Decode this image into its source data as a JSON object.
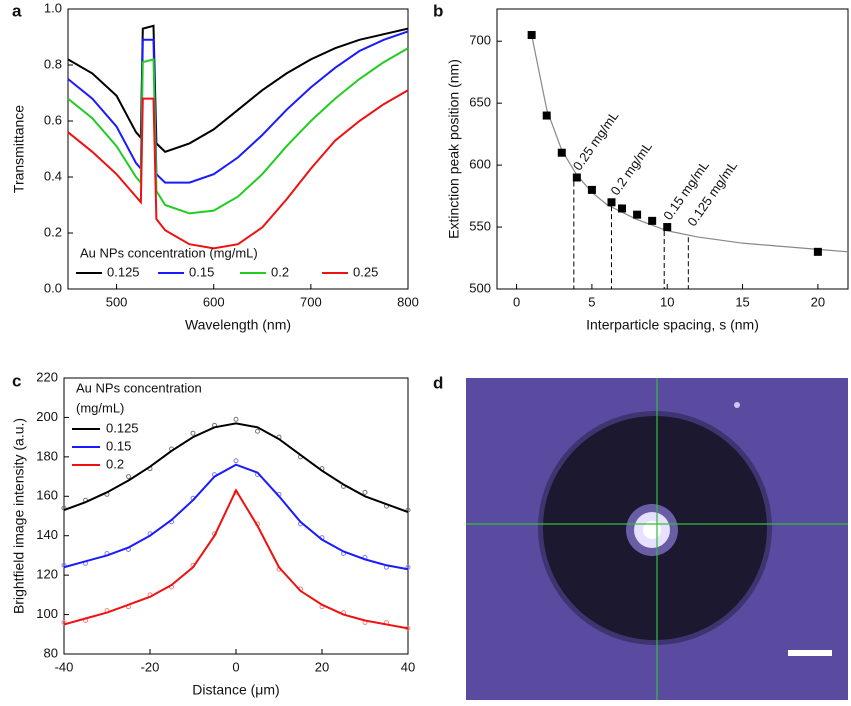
{
  "chart_data": [
    {
      "type": "line",
      "panel_label": "a",
      "x_label": "Wavelength (nm)",
      "y_label": "Transmittance",
      "xlim": [
        450,
        800
      ],
      "ylim": [
        0,
        1.0
      ],
      "xticks": [
        500,
        600,
        700,
        800
      ],
      "yticks": [
        {
          "value": 0,
          "label": "0.0"
        },
        0.2,
        0.4,
        0.6,
        0.8,
        {
          "value": 1.0,
          "label": "1.0"
        }
      ],
      "legend_title": [
        "Au NPs concentration (mg/mL)"
      ],
      "legend": "lower left",
      "x": [
        450,
        475,
        500,
        520,
        525,
        527,
        538,
        541,
        550,
        575,
        600,
        625,
        650,
        675,
        700,
        725,
        750,
        775,
        800
      ],
      "series": [
        {
          "name": "0.125",
          "color": "#000000",
          "values": [
            0.82,
            0.77,
            0.69,
            0.56,
            0.54,
            0.93,
            0.94,
            0.52,
            0.49,
            0.52,
            0.57,
            0.64,
            0.71,
            0.77,
            0.82,
            0.86,
            0.89,
            0.91,
            0.93
          ]
        },
        {
          "name": "0.15",
          "color": "#1a1aff",
          "values": [
            0.75,
            0.68,
            0.58,
            0.45,
            0.43,
            0.89,
            0.89,
            0.41,
            0.38,
            0.38,
            0.41,
            0.47,
            0.55,
            0.64,
            0.72,
            0.79,
            0.85,
            0.89,
            0.92
          ]
        },
        {
          "name": "0.2",
          "color": "#22cc22",
          "values": [
            0.68,
            0.61,
            0.51,
            0.4,
            0.38,
            0.81,
            0.82,
            0.35,
            0.3,
            0.27,
            0.28,
            0.33,
            0.41,
            0.51,
            0.6,
            0.68,
            0.75,
            0.81,
            0.86
          ]
        },
        {
          "name": "0.25",
          "color": "#ee1111",
          "values": [
            0.56,
            0.49,
            0.41,
            0.33,
            0.31,
            0.68,
            0.68,
            0.25,
            0.21,
            0.16,
            0.145,
            0.16,
            0.22,
            0.32,
            0.43,
            0.53,
            0.6,
            0.66,
            0.71
          ]
        }
      ]
    },
    {
      "type": "scatter",
      "panel_label": "b",
      "x_label": "Interparticle spacing, s (nm)",
      "y_label": "Extinction peak position (nm)",
      "xlim": [
        -1.3,
        22
      ],
      "ylim": [
        500,
        726
      ],
      "xticks": [
        0,
        5,
        10,
        15,
        20
      ],
      "yticks": [
        500,
        550,
        600,
        650,
        700
      ],
      "series": [
        {
          "kind": "line",
          "color": "#888888",
          "x": [
            1,
            2,
            3,
            4,
            5,
            6,
            8,
            10,
            12,
            15,
            20,
            22
          ],
          "values": [
            705,
            645,
            612,
            592,
            578,
            568,
            556,
            547,
            542,
            537,
            532,
            530
          ]
        },
        {
          "kind": "markers",
          "color": "#000000",
          "x": [
            1,
            2,
            3,
            4,
            5,
            6.3,
            7,
            8,
            9,
            10,
            20
          ],
          "values": [
            705,
            640,
            610,
            590,
            580,
            570,
            565,
            560,
            555,
            550,
            530
          ]
        }
      ],
      "annotations": [
        {
          "x": 3.8,
          "y": 590,
          "label": "0.25 mg/mL"
        },
        {
          "x": 6.3,
          "y": 570,
          "label": "0.2 mg/mL"
        },
        {
          "x": 9.8,
          "y": 550,
          "label": "0.15 mg/mL"
        },
        {
          "x": 11.4,
          "y": 545,
          "label": "0.125 mg/mL"
        }
      ]
    },
    {
      "type": "line",
      "panel_label": "c",
      "x_label": "Distance (μm)",
      "y_label": "Brightfield image intensity (a.u.)",
      "xlim": [
        -40,
        40
      ],
      "ylim": [
        80,
        220
      ],
      "xticks": [
        -40,
        -20,
        0,
        20,
        40
      ],
      "yticks": [
        80,
        100,
        120,
        140,
        160,
        180,
        200,
        220
      ],
      "legend_title": [
        "Au NPs concentration",
        "(mg/mL)"
      ],
      "legend": "upper left",
      "x": [
        -40,
        -35,
        -30,
        -25,
        -20,
        -15,
        -10,
        -5,
        0,
        5,
        10,
        15,
        20,
        25,
        30,
        35,
        40
      ],
      "series": [
        {
          "kind": "markers",
          "color": "#777777",
          "values": [
            154,
            158,
            161,
            170,
            174,
            184,
            192,
            196,
            199,
            193,
            190,
            180,
            174,
            165,
            162,
            155,
            153
          ]
        },
        {
          "kind": "markers",
          "color": "#8080ff",
          "values": [
            125,
            126,
            131,
            133,
            141,
            147,
            159,
            171,
            178,
            171,
            161,
            146,
            139,
            131,
            129,
            124,
            124
          ]
        },
        {
          "kind": "markers",
          "color": "#ff8080",
          "values": [
            96,
            97,
            102,
            104,
            110,
            114,
            125,
            141,
            162,
            146,
            123,
            113,
            104,
            101,
            96,
            96,
            93
          ]
        },
        {
          "name": "0.125",
          "kind": "line",
          "color": "#000000",
          "values": [
            153,
            157,
            162,
            168,
            175,
            183,
            190,
            195,
            197,
            195,
            189,
            181,
            173,
            166,
            160,
            156,
            152
          ]
        },
        {
          "name": "0.15",
          "kind": "line",
          "color": "#1a1aff",
          "values": [
            124,
            127,
            130,
            134,
            140,
            148,
            158,
            170,
            176,
            172,
            160,
            147,
            138,
            132,
            128,
            125,
            123
          ]
        },
        {
          "name": "0.2",
          "kind": "line",
          "color": "#ee1111",
          "values": [
            95,
            98,
            101,
            105,
            109,
            115,
            124,
            140,
            163,
            145,
            124,
            112,
            105,
            100,
            97,
            95,
            93
          ]
        }
      ]
    }
  ],
  "panel_d": {
    "panel_label": "d"
  }
}
